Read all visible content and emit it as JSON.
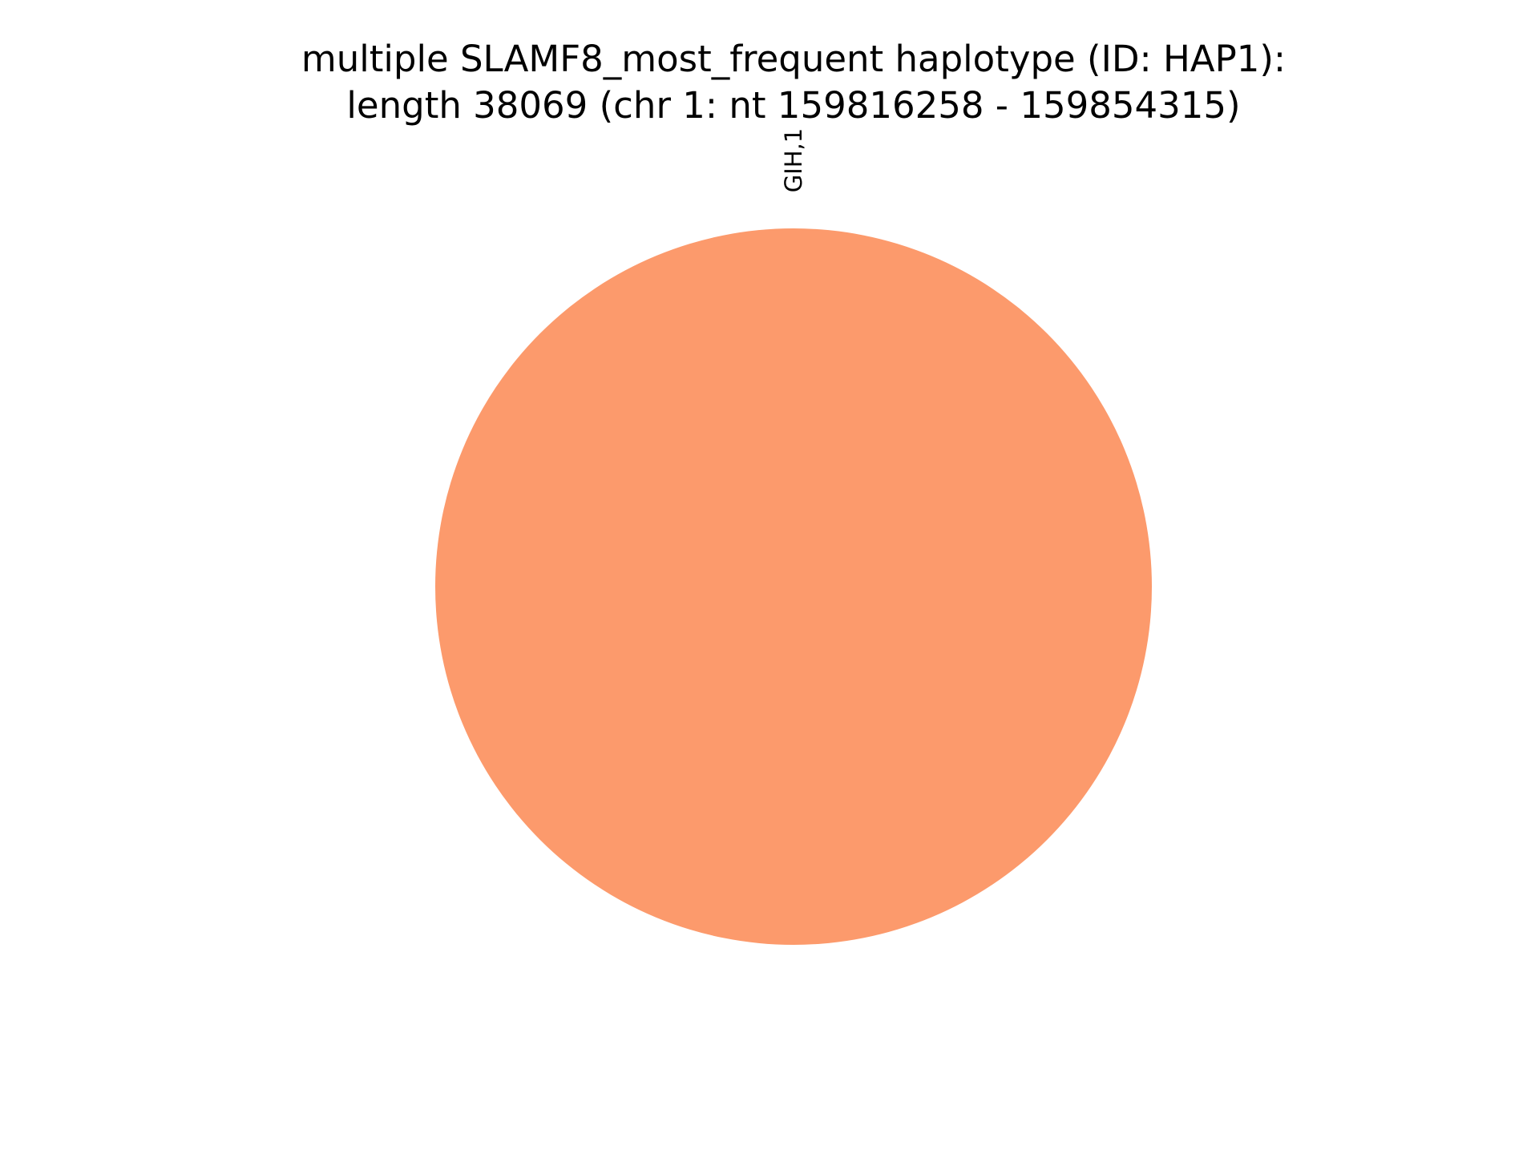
{
  "chart_data": {
    "type": "pie",
    "title": {
      "line1": "multiple SLAMF8_most_frequent haplotype (ID: HAP1):",
      "line2": "length 38069 (chr 1: nt 159816258 - 159854315)"
    },
    "slices": [
      {
        "label": "GIH,1",
        "value": 1,
        "color": "#fc9a6c"
      }
    ],
    "start_angle_deg": 270,
    "legend": "none"
  }
}
